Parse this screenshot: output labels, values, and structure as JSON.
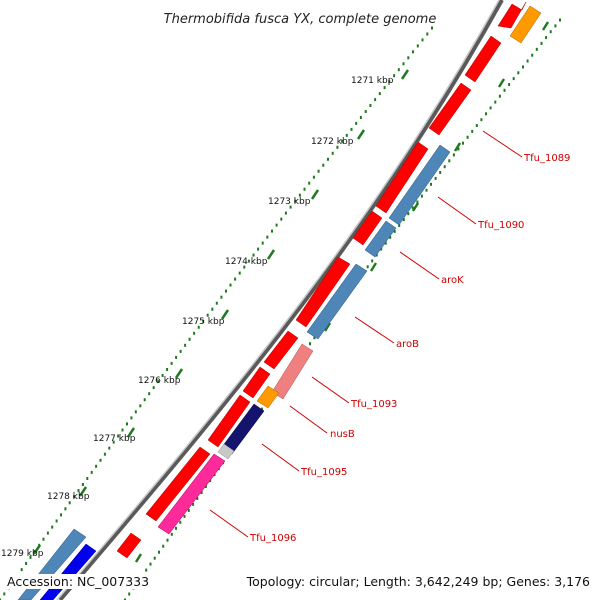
{
  "title": "Thermobifida fusca YX, complete genome",
  "footer": {
    "accession": "Accession: NC_007333",
    "summary": "Topology: circular; Length: 3,642,249 bp; Genes: 3,176"
  },
  "colors": {
    "backbone": "#8a8a8a",
    "ticks": "#1f7a1f",
    "label_color": "#cc0000",
    "forward_gene": "#ff0000",
    "reverse_gene": "#4f86b8",
    "orange_gene": "#ff9900",
    "pink_gene": "#f08080",
    "navy_gene": "#14146e",
    "magenta_gene": "#ff2a9a",
    "blue_gene": "#0000ee",
    "grey_gene": "#c8c8c8"
  },
  "kbp_labels": [
    "1271 kbp",
    "1272 kbp",
    "1273 kbp",
    "1274 kbp",
    "1275 kbp",
    "1276 kbp",
    "1277 kbp",
    "1278 kbp",
    "1279 kbp"
  ],
  "gene_labels": [
    "Tfu_1089",
    "Tfu_1090",
    "aroK",
    "aroB",
    "Tfu_1093",
    "nusB",
    "Tfu_1095",
    "Tfu_1096"
  ]
}
